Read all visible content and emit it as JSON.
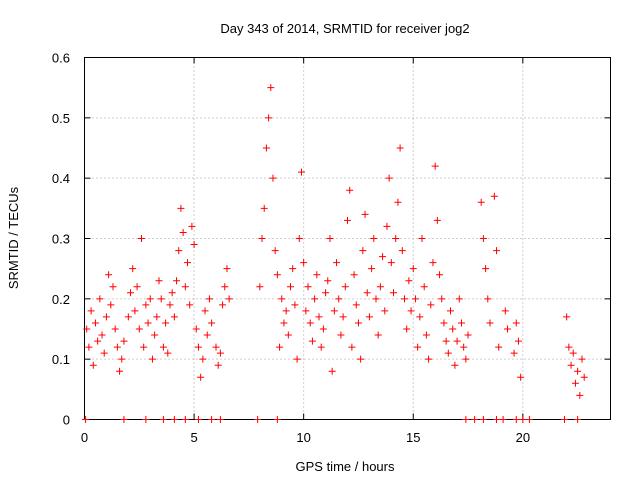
{
  "chart_data": {
    "type": "scatter",
    "title": "Day 343 of 2014, SRMTID for receiver jog2",
    "xlabel": "GPS time / hours",
    "ylabel": "SRMTID / TECUs",
    "xlim": [
      0,
      24
    ],
    "ylim": [
      0,
      0.6
    ],
    "x_ticks": [
      0,
      5,
      10,
      15,
      20
    ],
    "x_tick_labels": [
      "0",
      "5",
      "10",
      "15",
      "20"
    ],
    "y_ticks": [
      0,
      0.1,
      0.2,
      0.3,
      0.4,
      0.5,
      0.6
    ],
    "y_tick_labels": [
      "0",
      "0.1",
      "0.2",
      "0.3",
      "0.4",
      "0.5",
      "0.6"
    ],
    "grid": true,
    "marker": "+",
    "marker_color": "#ff0000",
    "points": [
      [
        0.1,
        0.15
      ],
      [
        0.2,
        0.12
      ],
      [
        0.3,
        0.18
      ],
      [
        0.4,
        0.09
      ],
      [
        0.5,
        0.16
      ],
      [
        0.6,
        0.13
      ],
      [
        0.7,
        0.2
      ],
      [
        0.8,
        0.14
      ],
      [
        0.9,
        0.11
      ],
      [
        1.0,
        0.17
      ],
      [
        1.1,
        0.24
      ],
      [
        1.2,
        0.19
      ],
      [
        1.3,
        0.22
      ],
      [
        1.4,
        0.15
      ],
      [
        1.5,
        0.12
      ],
      [
        1.6,
        0.08
      ],
      [
        1.7,
        0.1
      ],
      [
        1.8,
        0.13
      ],
      [
        2.0,
        0.17
      ],
      [
        2.1,
        0.21
      ],
      [
        2.2,
        0.25
      ],
      [
        2.3,
        0.18
      ],
      [
        2.4,
        0.22
      ],
      [
        2.5,
        0.15
      ],
      [
        2.6,
        0.3
      ],
      [
        2.7,
        0.12
      ],
      [
        2.8,
        0.19
      ],
      [
        2.9,
        0.16
      ],
      [
        3.0,
        0.2
      ],
      [
        3.1,
        0.1
      ],
      [
        3.2,
        0.14
      ],
      [
        3.3,
        0.17
      ],
      [
        3.4,
        0.23
      ],
      [
        3.5,
        0.2
      ],
      [
        3.6,
        0.12
      ],
      [
        3.7,
        0.16
      ],
      [
        3.8,
        0.11
      ],
      [
        3.9,
        0.19
      ],
      [
        4.0,
        0.21
      ],
      [
        4.1,
        0.17
      ],
      [
        4.2,
        0.23
      ],
      [
        4.3,
        0.28
      ],
      [
        4.4,
        0.35
      ],
      [
        4.5,
        0.31
      ],
      [
        4.6,
        0.22
      ],
      [
        4.7,
        0.26
      ],
      [
        4.8,
        0.19
      ],
      [
        4.9,
        0.32
      ],
      [
        5.0,
        0.29
      ],
      [
        5.1,
        0.15
      ],
      [
        5.2,
        0.12
      ],
      [
        5.3,
        0.07
      ],
      [
        5.4,
        0.1
      ],
      [
        5.5,
        0.18
      ],
      [
        5.6,
        0.14
      ],
      [
        5.7,
        0.2
      ],
      [
        5.8,
        0.16
      ],
      [
        6.0,
        0.12
      ],
      [
        6.1,
        0.09
      ],
      [
        6.2,
        0.11
      ],
      [
        6.3,
        0.19
      ],
      [
        6.4,
        0.22
      ],
      [
        6.5,
        0.25
      ],
      [
        6.6,
        0.2
      ],
      [
        8.0,
        0.22
      ],
      [
        8.1,
        0.3
      ],
      [
        8.2,
        0.35
      ],
      [
        8.3,
        0.45
      ],
      [
        8.4,
        0.5
      ],
      [
        8.5,
        0.55
      ],
      [
        8.6,
        0.4
      ],
      [
        8.7,
        0.28
      ],
      [
        8.8,
        0.24
      ],
      [
        8.9,
        0.12
      ],
      [
        9.0,
        0.2
      ],
      [
        9.1,
        0.16
      ],
      [
        9.2,
        0.18
      ],
      [
        9.3,
        0.14
      ],
      [
        9.4,
        0.22
      ],
      [
        9.5,
        0.25
      ],
      [
        9.6,
        0.19
      ],
      [
        9.7,
        0.1
      ],
      [
        9.8,
        0.3
      ],
      [
        9.9,
        0.41
      ],
      [
        10.0,
        0.26
      ],
      [
        10.1,
        0.18
      ],
      [
        10.2,
        0.22
      ],
      [
        10.3,
        0.16
      ],
      [
        10.4,
        0.13
      ],
      [
        10.5,
        0.2
      ],
      [
        10.6,
        0.24
      ],
      [
        10.7,
        0.17
      ],
      [
        10.8,
        0.12
      ],
      [
        10.9,
        0.15
      ],
      [
        11.0,
        0.21
      ],
      [
        11.1,
        0.23
      ],
      [
        11.2,
        0.3
      ],
      [
        11.3,
        0.08
      ],
      [
        11.4,
        0.18
      ],
      [
        11.5,
        0.26
      ],
      [
        11.6,
        0.2
      ],
      [
        11.7,
        0.14
      ],
      [
        11.8,
        0.17
      ],
      [
        11.9,
        0.22
      ],
      [
        12.0,
        0.33
      ],
      [
        12.1,
        0.38
      ],
      [
        12.2,
        0.12
      ],
      [
        12.3,
        0.24
      ],
      [
        12.4,
        0.19
      ],
      [
        12.5,
        0.16
      ],
      [
        12.6,
        0.1
      ],
      [
        12.7,
        0.28
      ],
      [
        12.8,
        0.34
      ],
      [
        12.9,
        0.21
      ],
      [
        13.0,
        0.17
      ],
      [
        13.1,
        0.25
      ],
      [
        13.2,
        0.3
      ],
      [
        13.3,
        0.2
      ],
      [
        13.4,
        0.14
      ],
      [
        13.5,
        0.22
      ],
      [
        13.6,
        0.27
      ],
      [
        13.7,
        0.18
      ],
      [
        13.8,
        0.32
      ],
      [
        13.9,
        0.4
      ],
      [
        14.0,
        0.26
      ],
      [
        14.1,
        0.21
      ],
      [
        14.2,
        0.3
      ],
      [
        14.3,
        0.36
      ],
      [
        14.4,
        0.45
      ],
      [
        14.5,
        0.28
      ],
      [
        14.6,
        0.2
      ],
      [
        14.7,
        0.15
      ],
      [
        14.8,
        0.23
      ],
      [
        14.9,
        0.18
      ],
      [
        15.0,
        0.25
      ],
      [
        15.1,
        0.2
      ],
      [
        15.2,
        0.12
      ],
      [
        15.3,
        0.17
      ],
      [
        15.4,
        0.3
      ],
      [
        15.5,
        0.22
      ],
      [
        15.6,
        0.14
      ],
      [
        15.7,
        0.1
      ],
      [
        15.8,
        0.19
      ],
      [
        15.9,
        0.26
      ],
      [
        16.0,
        0.42
      ],
      [
        16.1,
        0.33
      ],
      [
        16.2,
        0.24
      ],
      [
        16.3,
        0.2
      ],
      [
        16.4,
        0.16
      ],
      [
        16.5,
        0.13
      ],
      [
        16.6,
        0.11
      ],
      [
        16.7,
        0.18
      ],
      [
        16.8,
        0.15
      ],
      [
        16.9,
        0.09
      ],
      [
        17.0,
        0.13
      ],
      [
        17.1,
        0.2
      ],
      [
        17.2,
        0.16
      ],
      [
        17.3,
        0.12
      ],
      [
        17.4,
        0.1
      ],
      [
        17.5,
        0.14
      ],
      [
        18.1,
        0.36
      ],
      [
        18.2,
        0.3
      ],
      [
        18.3,
        0.25
      ],
      [
        18.4,
        0.2
      ],
      [
        18.5,
        0.16
      ],
      [
        18.7,
        0.37
      ],
      [
        18.8,
        0.28
      ],
      [
        18.9,
        0.12
      ],
      [
        19.2,
        0.18
      ],
      [
        19.3,
        0.15
      ],
      [
        19.6,
        0.11
      ],
      [
        19.7,
        0.16
      ],
      [
        19.8,
        0.13
      ],
      [
        19.9,
        0.07
      ],
      [
        22.0,
        0.17
      ],
      [
        22.1,
        0.12
      ],
      [
        22.2,
        0.09
      ],
      [
        22.3,
        0.11
      ],
      [
        22.4,
        0.06
      ],
      [
        22.5,
        0.08
      ],
      [
        22.6,
        0.04
      ],
      [
        22.7,
        0.1
      ],
      [
        22.8,
        0.07
      ],
      [
        0.05,
        0.0
      ],
      [
        1.8,
        0.0
      ],
      [
        2.8,
        0.0
      ],
      [
        3.6,
        0.0
      ],
      [
        4.1,
        0.0
      ],
      [
        4.6,
        0.0
      ],
      [
        5.2,
        0.0
      ],
      [
        5.8,
        0.0
      ],
      [
        6.2,
        0.0
      ],
      [
        7.9,
        0.0
      ],
      [
        8.8,
        0.0
      ],
      [
        17.4,
        0.0
      ],
      [
        17.8,
        0.0
      ],
      [
        18.2,
        0.0
      ],
      [
        18.8,
        0.0
      ],
      [
        19.1,
        0.0
      ],
      [
        19.7,
        0.0
      ],
      [
        20.0,
        0.0
      ],
      [
        20.3,
        0.0
      ],
      [
        21.9,
        0.0
      ],
      [
        22.5,
        0.0
      ]
    ]
  }
}
